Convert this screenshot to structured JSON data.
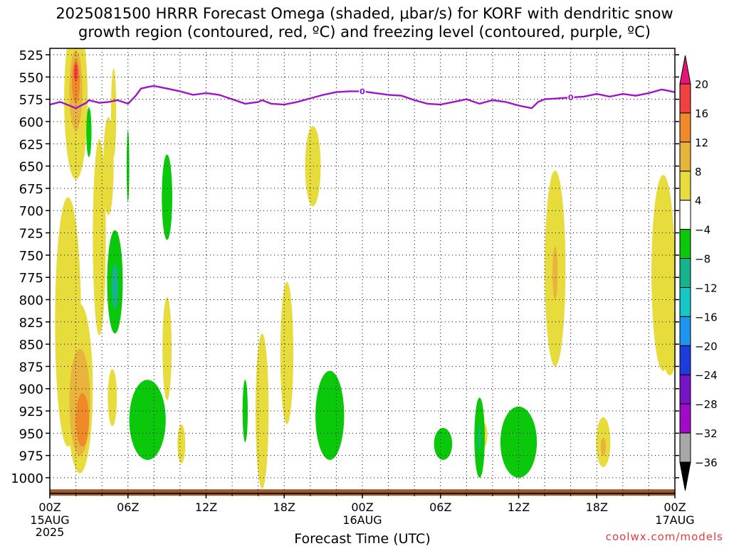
{
  "title_line1": "2025081500 HRRR Forecast Omega (shaded, μbar/s) for KORF with dendritic snow",
  "title_line2": "growth region (contoured, red, ºC) and freezing level (contoured, purple, ºC)",
  "credit": "coolwx.com/models",
  "chart_data": {
    "type": "contour",
    "xlabel": "Forecast Time (UTC)",
    "ylabel": "",
    "x_unit": "hours",
    "xlim": [
      0,
      48
    ],
    "ylim": [
      1000,
      525
    ],
    "x_ticks": [
      {
        "h": 0,
        "label": "00Z",
        "sub1": "15AUG",
        "sub2": "2025"
      },
      {
        "h": 6,
        "label": "06Z",
        "sub1": "",
        "sub2": ""
      },
      {
        "h": 12,
        "label": "12Z",
        "sub1": "",
        "sub2": ""
      },
      {
        "h": 18,
        "label": "18Z",
        "sub1": "",
        "sub2": ""
      },
      {
        "h": 24,
        "label": "00Z",
        "sub1": "16AUG",
        "sub2": ""
      },
      {
        "h": 30,
        "label": "06Z",
        "sub1": "",
        "sub2": ""
      },
      {
        "h": 36,
        "label": "12Z",
        "sub1": "",
        "sub2": ""
      },
      {
        "h": 42,
        "label": "18Z",
        "sub1": "",
        "sub2": ""
      },
      {
        "h": 48,
        "label": "00Z",
        "sub1": "17AUG",
        "sub2": ""
      }
    ],
    "y_ticks": [
      525,
      550,
      575,
      600,
      625,
      650,
      675,
      700,
      725,
      750,
      775,
      800,
      825,
      850,
      875,
      900,
      925,
      950,
      975,
      1000
    ],
    "colorbar": {
      "labels": [
        20,
        16,
        12,
        8,
        4,
        -4,
        -8,
        -12,
        -16,
        -20,
        -24,
        -28,
        -32,
        -36
      ],
      "colors": [
        "#e8147a",
        "#f04040",
        "#f08a28",
        "#e8b43c",
        "#e8dc3c",
        "#ffffff",
        "#0ac80a",
        "#14b48c",
        "#14c8c8",
        "#1e96f0",
        "#1e3cdc",
        "#7814c8",
        "#a00ac8",
        "#a8a8a8",
        "#000000"
      ]
    },
    "freezing_level": {
      "color": "#9f14c8",
      "label": "0",
      "label_hours": [
        24,
        40
      ],
      "points": [
        [
          0,
          581
        ],
        [
          0.8,
          578
        ],
        [
          1.5,
          582
        ],
        [
          2,
          585
        ],
        [
          2.8,
          579
        ],
        [
          3,
          576
        ],
        [
          3.8,
          579
        ],
        [
          4.5,
          578
        ],
        [
          5.2,
          576
        ],
        [
          6,
          580
        ],
        [
          6.6,
          571
        ],
        [
          7,
          563
        ],
        [
          7.6,
          561
        ],
        [
          8,
          560
        ],
        [
          9,
          563
        ],
        [
          10,
          566
        ],
        [
          11,
          570
        ],
        [
          12,
          568
        ],
        [
          13,
          570
        ],
        [
          14,
          575
        ],
        [
          15,
          580
        ],
        [
          16,
          578
        ],
        [
          16.3,
          576
        ],
        [
          17,
          580
        ],
        [
          18,
          581
        ],
        [
          19,
          578
        ],
        [
          20,
          574
        ],
        [
          21,
          570
        ],
        [
          22,
          567
        ],
        [
          23,
          566
        ],
        [
          24,
          566
        ],
        [
          25,
          568
        ],
        [
          26,
          570
        ],
        [
          27,
          571
        ],
        [
          28,
          576
        ],
        [
          29,
          580
        ],
        [
          30,
          581
        ],
        [
          31,
          578
        ],
        [
          32,
          575
        ],
        [
          33,
          580
        ],
        [
          34,
          576
        ],
        [
          35,
          578
        ],
        [
          36,
          582
        ],
        [
          37,
          585
        ],
        [
          37.5,
          578
        ],
        [
          38,
          575
        ],
        [
          39,
          574
        ],
        [
          40,
          573
        ],
        [
          41,
          572
        ],
        [
          42,
          569
        ],
        [
          43,
          572
        ],
        [
          44,
          569
        ],
        [
          45,
          571
        ],
        [
          46,
          568
        ],
        [
          47,
          564
        ],
        [
          48,
          567
        ]
      ]
    },
    "omega_regions": [
      {
        "level": 4,
        "cx": 2,
        "cy": 575,
        "rx": 0.9,
        "ry": 90
      },
      {
        "level": 8,
        "cx": 2,
        "cy": 565,
        "rx": 0.5,
        "ry": 45
      },
      {
        "level": 12,
        "cx": 2,
        "cy": 555,
        "rx": 0.3,
        "ry": 25
      },
      {
        "level": 16,
        "cx": 2,
        "cy": 545,
        "rx": 0.15,
        "ry": 10
      },
      {
        "level": 4,
        "cx": 1.4,
        "cy": 825,
        "rx": 1.0,
        "ry": 140
      },
      {
        "level": 4,
        "cx": 2.3,
        "cy": 900,
        "rx": 1.0,
        "ry": 95
      },
      {
        "level": 8,
        "cx": 2.3,
        "cy": 915,
        "rx": 0.8,
        "ry": 60
      },
      {
        "level": 12,
        "cx": 2.5,
        "cy": 935,
        "rx": 0.5,
        "ry": 30
      },
      {
        "level": 4,
        "cx": 3.8,
        "cy": 730,
        "rx": 0.5,
        "ry": 110
      },
      {
        "level": 4,
        "cx": 4.5,
        "cy": 650,
        "rx": 0.4,
        "ry": 55
      },
      {
        "level": 4,
        "cx": 4.9,
        "cy": 590,
        "rx": 0.2,
        "ry": 50
      },
      {
        "level": 4,
        "cx": 4.8,
        "cy": 910,
        "rx": 0.35,
        "ry": 32
      },
      {
        "level": 4,
        "cx": 9.0,
        "cy": 855,
        "rx": 0.35,
        "ry": 58
      },
      {
        "level": 4,
        "cx": 10.1,
        "cy": 962,
        "rx": 0.3,
        "ry": 22
      },
      {
        "level": 4,
        "cx": 16.3,
        "cy": 925,
        "rx": 0.5,
        "ry": 87
      },
      {
        "level": 4,
        "cx": 18.2,
        "cy": 860,
        "rx": 0.5,
        "ry": 80
      },
      {
        "level": 4,
        "cx": 20.2,
        "cy": 650,
        "rx": 0.6,
        "ry": 45
      },
      {
        "level": 4,
        "cx": 33.3,
        "cy": 952,
        "rx": 0.3,
        "ry": 14
      },
      {
        "level": 4,
        "cx": 38.8,
        "cy": 765,
        "rx": 0.8,
        "ry": 110
      },
      {
        "level": 8,
        "cx": 38.8,
        "cy": 770,
        "rx": 0.2,
        "ry": 30
      },
      {
        "level": 4,
        "cx": 42.5,
        "cy": 960,
        "rx": 0.55,
        "ry": 28
      },
      {
        "level": 8,
        "cx": 42.5,
        "cy": 965,
        "rx": 0.2,
        "ry": 10
      },
      {
        "level": 4,
        "cx": 47.1,
        "cy": 770,
        "rx": 0.9,
        "ry": 110
      },
      {
        "level": 4,
        "cx": 47.6,
        "cy": 845,
        "rx": 0.6,
        "ry": 40
      },
      {
        "level": -4,
        "cx": 3.0,
        "cy": 612,
        "rx": 0.2,
        "ry": 28
      },
      {
        "level": -4,
        "cx": 6.0,
        "cy": 650,
        "rx": 0.1,
        "ry": 40
      },
      {
        "level": -4,
        "cx": 5.0,
        "cy": 780,
        "rx": 0.6,
        "ry": 58
      },
      {
        "level": -8,
        "cx": 5.0,
        "cy": 785,
        "rx": 0.25,
        "ry": 25
      },
      {
        "level": -4,
        "cx": 9.0,
        "cy": 685,
        "rx": 0.4,
        "ry": 48
      },
      {
        "level": -4,
        "cx": 7.5,
        "cy": 935,
        "rx": 1.4,
        "ry": 45
      },
      {
        "level": -4,
        "cx": 15.0,
        "cy": 925,
        "rx": 0.2,
        "ry": 35
      },
      {
        "level": -4,
        "cx": 21.5,
        "cy": 930,
        "rx": 1.1,
        "ry": 50
      },
      {
        "level": -4,
        "cx": 30.2,
        "cy": 962,
        "rx": 0.7,
        "ry": 18
      },
      {
        "level": -4,
        "cx": 33.0,
        "cy": 955,
        "rx": 0.4,
        "ry": 45
      },
      {
        "level": -8,
        "cx": 33.0,
        "cy": 955,
        "rx": 0.1,
        "ry": 15
      },
      {
        "level": -4,
        "cx": 36.0,
        "cy": 960,
        "rx": 1.4,
        "ry": 40
      }
    ],
    "terrain": {
      "color": "#9c5a2c",
      "top": 1013
    }
  }
}
